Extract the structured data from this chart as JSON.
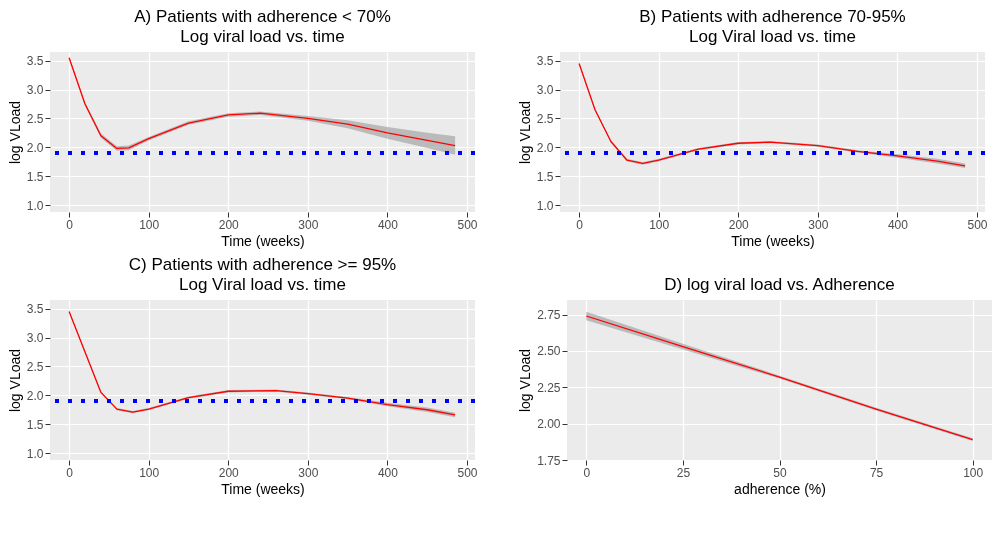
{
  "chart_data": [
    {
      "type": "line",
      "title": "A) Patients with adherence < 70%",
      "subtitle": "Log viral load vs. time",
      "xlabel": "Time (weeks)",
      "ylabel": "log VLoad",
      "xlim": [
        -24,
        510
      ],
      "ylim": [
        0.88,
        3.65
      ],
      "xticks": [
        0,
        100,
        200,
        300,
        400,
        500
      ],
      "yticks": [
        {
          "value": 1,
          "label": "1.0"
        },
        1.5,
        {
          "value": 2,
          "label": "2.0"
        },
        2.5,
        {
          "value": 3,
          "label": "3.0"
        },
        3.5
      ],
      "grid": true,
      "x": [
        0,
        20,
        40,
        60,
        75,
        100,
        150,
        200,
        240,
        300,
        350,
        400,
        450,
        485
      ],
      "series": [
        {
          "color": "#ff0000",
          "values": [
            3.55,
            2.75,
            2.2,
            1.98,
            1.99,
            2.15,
            2.42,
            2.56,
            2.59,
            2.5,
            2.4,
            2.25,
            2.12,
            2.03
          ],
          "lower": [
            3.53,
            2.72,
            2.16,
            1.94,
            1.95,
            2.12,
            2.39,
            2.53,
            2.56,
            2.46,
            2.33,
            2.15,
            1.99,
            1.87
          ],
          "upper": [
            3.57,
            2.78,
            2.24,
            2.02,
            2.03,
            2.18,
            2.45,
            2.59,
            2.62,
            2.54,
            2.47,
            2.35,
            2.25,
            2.19
          ]
        }
      ],
      "ref_lines": [
        {
          "axis": "y",
          "value": 1.9,
          "color": "#0000ff",
          "line_style": "dotted"
        }
      ]
    },
    {
      "type": "line",
      "title": "B) Patients with adherence 70-95%",
      "subtitle": "Log Viral load vs. time",
      "xlabel": "Time (weeks)",
      "ylabel": "log VLoad",
      "xlim": [
        -24,
        510
      ],
      "ylim": [
        0.88,
        3.65
      ],
      "xticks": [
        0,
        100,
        200,
        300,
        400,
        500
      ],
      "yticks": [
        {
          "value": 1,
          "label": "1.0"
        },
        1.5,
        {
          "value": 2,
          "label": "2.0"
        },
        2.5,
        {
          "value": 3,
          "label": "3.0"
        },
        3.5
      ],
      "grid": true,
      "x": [
        0,
        20,
        40,
        60,
        80,
        100,
        150,
        200,
        240,
        300,
        350,
        400,
        450,
        485
      ],
      "series": [
        {
          "color": "#ff0000",
          "values": [
            3.45,
            2.65,
            2.1,
            1.78,
            1.72,
            1.78,
            1.97,
            2.07,
            2.09,
            2.03,
            1.93,
            1.85,
            1.76,
            1.68
          ],
          "lower": [
            3.43,
            2.63,
            2.08,
            1.76,
            1.7,
            1.76,
            1.95,
            2.05,
            2.07,
            2.01,
            1.91,
            1.82,
            1.72,
            1.64
          ],
          "upper": [
            3.47,
            2.67,
            2.12,
            1.8,
            1.74,
            1.8,
            1.99,
            2.09,
            2.11,
            2.05,
            1.95,
            1.88,
            1.8,
            1.72
          ]
        }
      ],
      "ref_lines": [
        {
          "axis": "y",
          "value": 1.9,
          "color": "#0000ff",
          "line_style": "dotted"
        }
      ]
    },
    {
      "type": "line",
      "title": "C) Patients with adherence >= 95%",
      "subtitle": "Log Viral load vs. time",
      "xlabel": "Time (weeks)",
      "ylabel": "log VLoad",
      "xlim": [
        -24,
        510
      ],
      "ylim": [
        0.88,
        3.65
      ],
      "xticks": [
        0,
        100,
        200,
        300,
        400,
        500
      ],
      "yticks": [
        {
          "value": 1,
          "label": "1.0"
        },
        1.5,
        {
          "value": 2,
          "label": "2.0"
        },
        2.5,
        {
          "value": 3,
          "label": "3.0"
        },
        3.5
      ],
      "grid": true,
      "x": [
        0,
        20,
        40,
        60,
        80,
        100,
        150,
        200,
        260,
        300,
        350,
        400,
        450,
        485
      ],
      "series": [
        {
          "color": "#ff0000",
          "values": [
            3.45,
            2.75,
            2.05,
            1.76,
            1.71,
            1.76,
            1.96,
            2.07,
            2.08,
            2.03,
            1.95,
            1.84,
            1.75,
            1.66
          ],
          "lower": [
            3.43,
            2.73,
            2.03,
            1.74,
            1.69,
            1.74,
            1.94,
            2.05,
            2.06,
            2.01,
            1.93,
            1.81,
            1.71,
            1.62
          ],
          "upper": [
            3.47,
            2.77,
            2.07,
            1.78,
            1.73,
            1.78,
            1.98,
            2.09,
            2.1,
            2.05,
            1.97,
            1.87,
            1.79,
            1.7
          ]
        }
      ],
      "ref_lines": [
        {
          "axis": "y",
          "value": 1.9,
          "color": "#0000ff",
          "line_style": "dotted"
        }
      ]
    },
    {
      "type": "line",
      "title": "D) log viral load vs. Adherence",
      "xlabel": "adherence (%)",
      "ylabel": "log VLoad",
      "xlim": [
        -5,
        105
      ],
      "ylim": [
        1.75,
        2.85
      ],
      "xticks": [
        0,
        25,
        50,
        75,
        100
      ],
      "yticks": [
        1.75,
        {
          "value": 2,
          "label": "2.00"
        },
        2.25,
        {
          "value": 2.5,
          "label": "2.50"
        },
        2.75
      ],
      "grid": true,
      "x": [
        0,
        25,
        50,
        75,
        100
      ],
      "series": [
        {
          "color": "#ff0000",
          "values": [
            2.74,
            2.53,
            2.32,
            2.1,
            1.89
          ],
          "lower": [
            2.71,
            2.51,
            2.31,
            2.09,
            1.88
          ],
          "upper": [
            2.77,
            2.55,
            2.33,
            2.11,
            1.9
          ]
        }
      ]
    }
  ]
}
